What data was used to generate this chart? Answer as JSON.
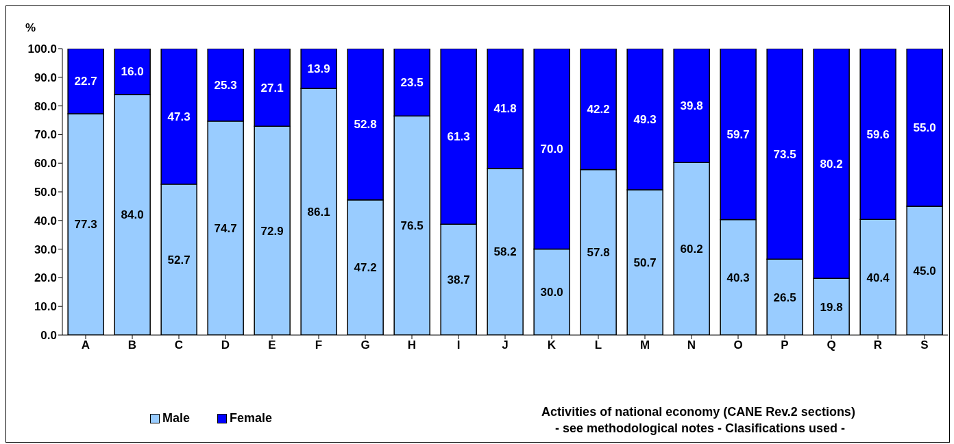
{
  "chart_data": {
    "type": "bar",
    "stacked": true,
    "ylabel": "%",
    "xlabel": "Activities of national economy (CANE Rev.2 sections)\n - see methodological notes - Clasifications used -",
    "categories": [
      "A",
      "B",
      "C",
      "D",
      "E",
      "F",
      "G",
      "H",
      "I",
      "J",
      "K",
      "L",
      "M",
      "N",
      "O",
      "P",
      "Q",
      "R",
      "S"
    ],
    "series": [
      {
        "name": "Male",
        "color": "#99ccff",
        "values": [
          77.3,
          84.0,
          52.7,
          74.7,
          72.9,
          86.1,
          47.2,
          76.5,
          38.7,
          58.2,
          30.0,
          57.8,
          50.7,
          60.2,
          40.3,
          26.5,
          19.8,
          40.4,
          45.0
        ],
        "value_labels": [
          "77.3",
          "84.0",
          "52.7",
          "74.7",
          "72.9",
          "86.1",
          "47.2",
          "76.5",
          "38.7",
          "58.2",
          "30.0",
          "57.8",
          "50.7",
          "60.2",
          "40.3",
          "26.5",
          "19.8",
          "40.4",
          "45.0"
        ]
      },
      {
        "name": "Female",
        "color": "#0000ff",
        "values": [
          22.7,
          16.0,
          47.3,
          25.3,
          27.1,
          13.9,
          52.8,
          23.5,
          61.3,
          41.8,
          70.0,
          42.2,
          49.3,
          39.8,
          59.7,
          73.5,
          80.2,
          59.6,
          55.0
        ],
        "value_labels": [
          "22.7",
          "16.0",
          "47.3",
          "25.3",
          "27.1",
          "13.9",
          "52.8",
          "23.5",
          "61.3",
          "41.8",
          "70.0",
          "42.2",
          "49.3",
          "39.8",
          "59.7",
          "73.5",
          "80.2",
          "59.6",
          "55.0"
        ]
      }
    ],
    "ylim": [
      0,
      100
    ],
    "yticks": [
      {
        "value": 0,
        "label": "0.0"
      },
      {
        "value": 10,
        "label": "10.0"
      },
      {
        "value": 20,
        "label": "20.0"
      },
      {
        "value": 30,
        "label": "30.0"
      },
      {
        "value": 40,
        "label": "40.0"
      },
      {
        "value": 50,
        "label": "50.0"
      },
      {
        "value": 60,
        "label": "60.0"
      },
      {
        "value": 70,
        "label": "70.0"
      },
      {
        "value": 80,
        "label": "80.0"
      },
      {
        "value": 90,
        "label": "90.0"
      },
      {
        "value": 100,
        "label": "100.0"
      }
    ],
    "grid": false,
    "legend": "bottom left"
  }
}
